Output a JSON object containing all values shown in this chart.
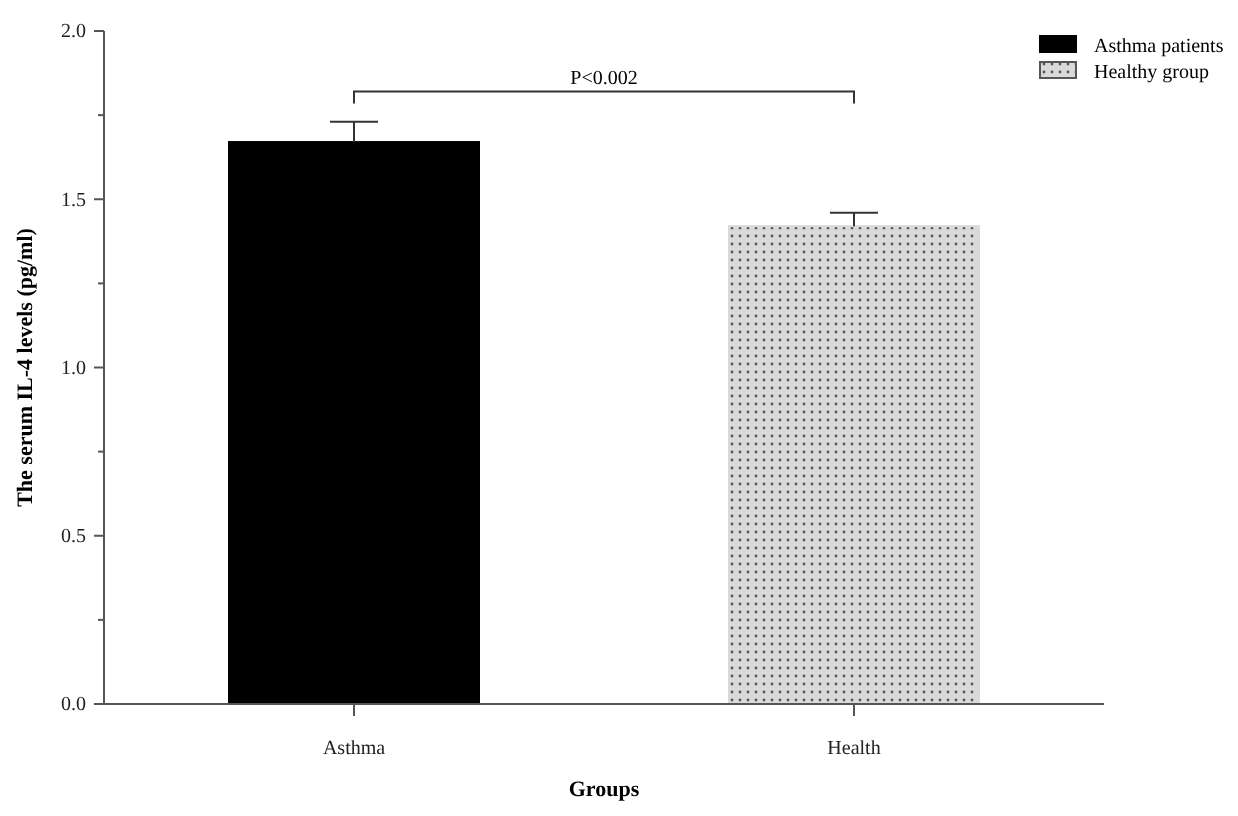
{
  "chart_data": {
    "type": "bar",
    "xlabel": "Groups",
    "ylabel": "The serum IL-4 levels (pg/ml)",
    "categories": [
      "Asthma",
      "Health"
    ],
    "series": [
      {
        "name": "Asthma patients",
        "color": "#000000",
        "values": [
          1.67,
          null
        ],
        "errors": [
          0.06,
          null
        ]
      },
      {
        "name": "Healthy group",
        "color": "#d9d9d9",
        "values": [
          null,
          1.42
        ],
        "errors": [
          null,
          0.04
        ]
      }
    ],
    "ylim": [
      0,
      2.0
    ],
    "yticks": [
      {
        "value": 0,
        "label": "0.0"
      },
      {
        "value": 0.25,
        "label": null
      },
      {
        "value": 0.5,
        "label": "0.5"
      },
      {
        "value": 0.75,
        "label": null
      },
      {
        "value": 1,
        "label": "1.0"
      },
      {
        "value": 1.25,
        "label": null
      },
      {
        "value": 1.5,
        "label": "1.5"
      },
      {
        "value": 1.75,
        "label": null
      },
      {
        "value": 2,
        "label": "2.0"
      }
    ],
    "annotations": [
      "P<0.002"
    ],
    "legend": "top right",
    "grid": false
  }
}
